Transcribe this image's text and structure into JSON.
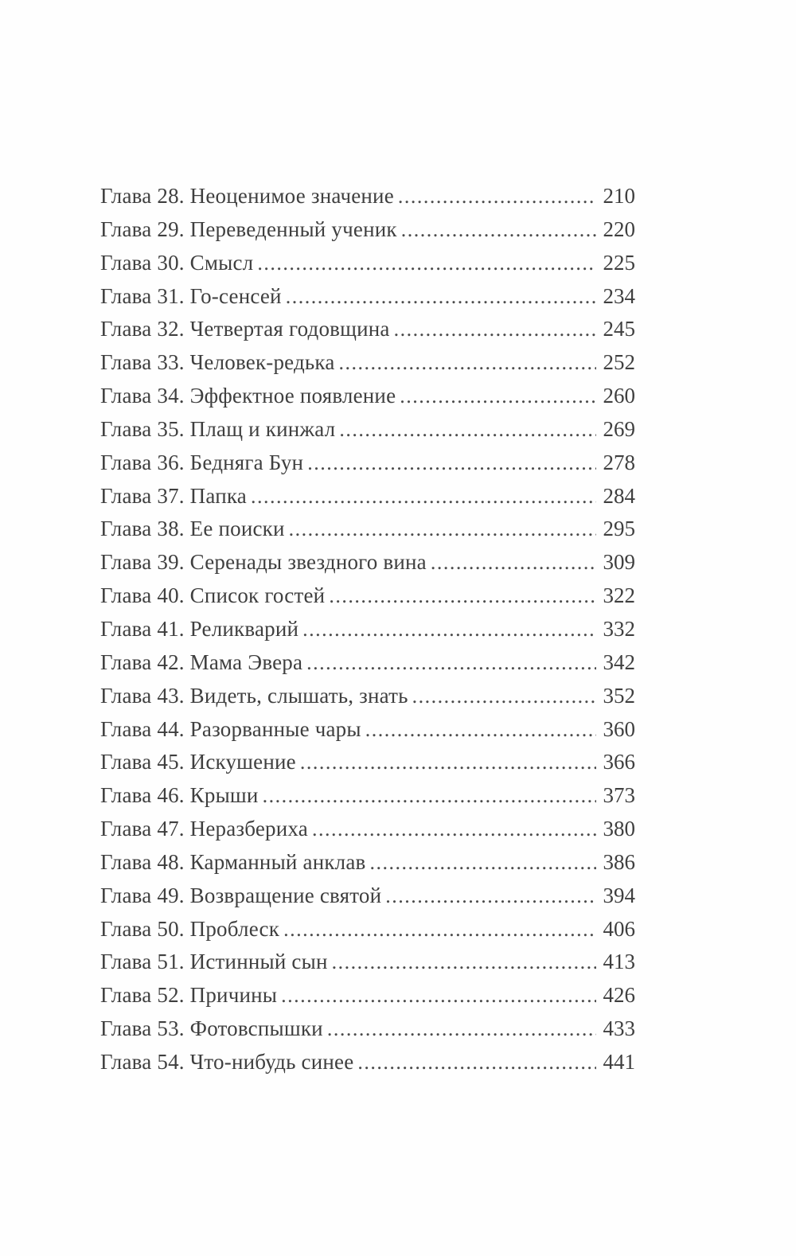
{
  "page": {
    "kind": "book-table-of-contents",
    "language": "ru",
    "background_color": "#fefefe",
    "text_color": "#3f3f3f"
  },
  "toc": {
    "entries": [
      {
        "label": "Глава 28. Неоценимое значение",
        "page": "210"
      },
      {
        "label": "Глава 29. Переведенный ученик",
        "page": "220"
      },
      {
        "label": "Глава 30. Смысл",
        "page": "225"
      },
      {
        "label": "Глава 31. Го-сенсей",
        "page": "234"
      },
      {
        "label": "Глава 32. Четвертая годовщина",
        "page": "245"
      },
      {
        "label": "Глава 33. Человек-редька",
        "page": "252"
      },
      {
        "label": "Глава 34. Эффектное появление",
        "page": "260"
      },
      {
        "label": "Глава 35. Плащ и кинжал",
        "page": "269"
      },
      {
        "label": "Глава 36. Бедняга Бун",
        "page": "278"
      },
      {
        "label": "Глава 37. Папка",
        "page": "284"
      },
      {
        "label": "Глава 38. Ее поиски",
        "page": "295"
      },
      {
        "label": "Глава 39. Серенады звездного вина",
        "page": "309"
      },
      {
        "label": "Глава 40. Список гостей",
        "page": "322"
      },
      {
        "label": "Глава 41. Реликварий",
        "page": "332"
      },
      {
        "label": "Глава 42. Мама Эвера",
        "page": "342"
      },
      {
        "label": "Глава 43. Видеть, слышать, знать",
        "page": "352"
      },
      {
        "label": "Глава 44. Разорванные чары",
        "page": "360"
      },
      {
        "label": "Глава 45. Искушение",
        "page": "366"
      },
      {
        "label": "Глава 46. Крыши",
        "page": "373"
      },
      {
        "label": "Глава 47. Неразбериха",
        "page": "380"
      },
      {
        "label": "Глава 48. Карманный анклав",
        "page": "386"
      },
      {
        "label": "Глава 49. Возвращение святой",
        "page": "394"
      },
      {
        "label": "Глава 50. Проблеск",
        "page": "406"
      },
      {
        "label": "Глава 51. Истинный сын",
        "page": "413"
      },
      {
        "label": "Глава 52. Причины",
        "page": "426"
      },
      {
        "label": "Глава 53. Фотовспышки",
        "page": "433"
      },
      {
        "label": "Глава 54. Что-нибудь синее",
        "page": "441"
      }
    ]
  }
}
